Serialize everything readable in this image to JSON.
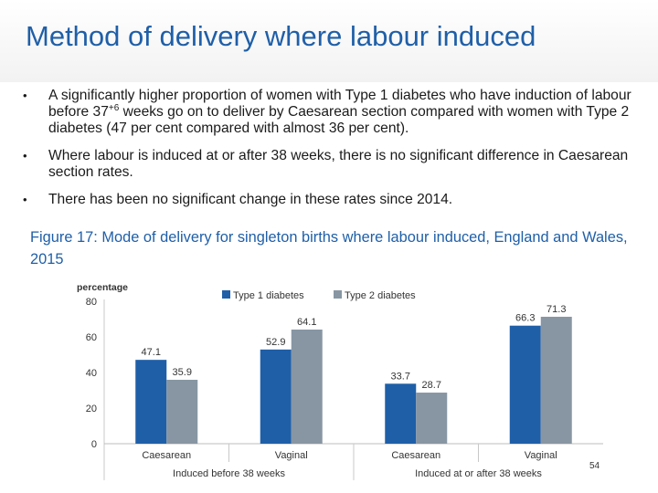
{
  "slide": {
    "title": "Method of delivery where labour induced",
    "bullets": [
      {
        "pre": "A significantly higher proportion of women with Type 1 diabetes who have induction of labour before 37",
        "sup": "+6",
        "post": " weeks go on to deliver by Caesarean section compared with women with Type 2 diabetes (47 per cent compared with almost 36 per cent)."
      },
      {
        "pre": "Where labour is induced at or after 38 weeks, there is no significant difference in Caesarean section rates.",
        "sup": "",
        "post": ""
      },
      {
        "pre": "There has been no significant change in these rates since 2014.",
        "sup": "",
        "post": ""
      }
    ],
    "bullet_glyph": "•",
    "figure_caption": "Figure 17: Mode of delivery for singleton births where labour induced, England and Wales, 2015",
    "page_number": "54"
  },
  "chart_data": {
    "type": "bar",
    "categories": [
      "Caesarean",
      "Vaginal",
      "Caesarean",
      "Vaginal"
    ],
    "groups": [
      {
        "label": "Induced before 38 weeks",
        "categories": [
          0,
          1
        ]
      },
      {
        "label": "Induced at or after 38 weeks",
        "categories": [
          2,
          3
        ]
      }
    ],
    "series": [
      {
        "name": "Type 1 diabetes",
        "values": [
          47.1,
          52.9,
          33.7,
          66.3
        ],
        "color": "#1f5fa8"
      },
      {
        "name": "Type 2 diabetes",
        "values": [
          35.9,
          64.1,
          28.7,
          71.3
        ],
        "color": "#8896a3"
      }
    ],
    "ylabel": "percentage",
    "ylim": [
      0,
      80
    ],
    "yticks": [
      0,
      20,
      40,
      60,
      80
    ],
    "grid": false,
    "legend_position": "top",
    "data_labels": true
  }
}
